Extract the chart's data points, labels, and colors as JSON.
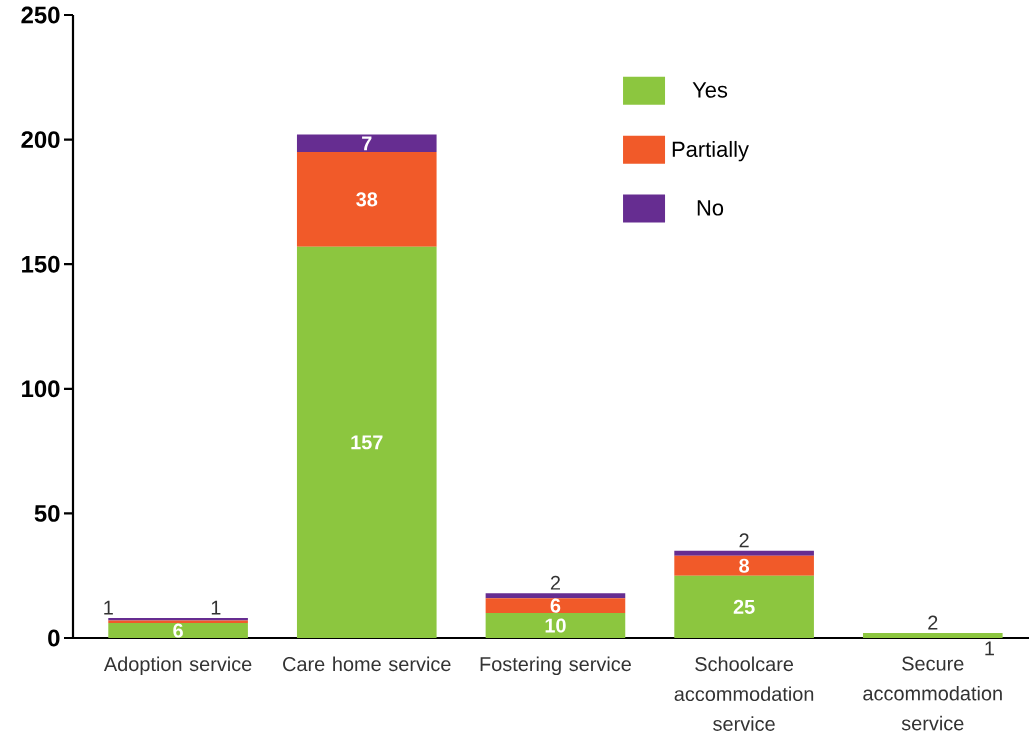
{
  "chart_data": {
    "type": "bar",
    "stacked": true,
    "categories": [
      "Adoption service",
      "Care home service",
      "Fostering service",
      "Schoolcare accommodation service",
      "Secure accommodation service"
    ],
    "series": [
      {
        "name": "Yes",
        "color": "#8cc63f",
        "values": [
          6,
          157,
          10,
          25,
          2
        ]
      },
      {
        "name": "Partially",
        "color": "#f15a29",
        "values": [
          1,
          38,
          6,
          8,
          null
        ]
      },
      {
        "name": "No",
        "color": "#662d91",
        "values": [
          1,
          7,
          2,
          2,
          null
        ]
      }
    ],
    "ylim": [
      0,
      250
    ],
    "yticks": [
      0,
      50,
      100,
      150,
      200,
      250
    ],
    "data_labels": true,
    "legend": "top right",
    "annotations": [
      {
        "text": "1",
        "x": "Secure accommodation service",
        "y": 0
      }
    ]
  }
}
